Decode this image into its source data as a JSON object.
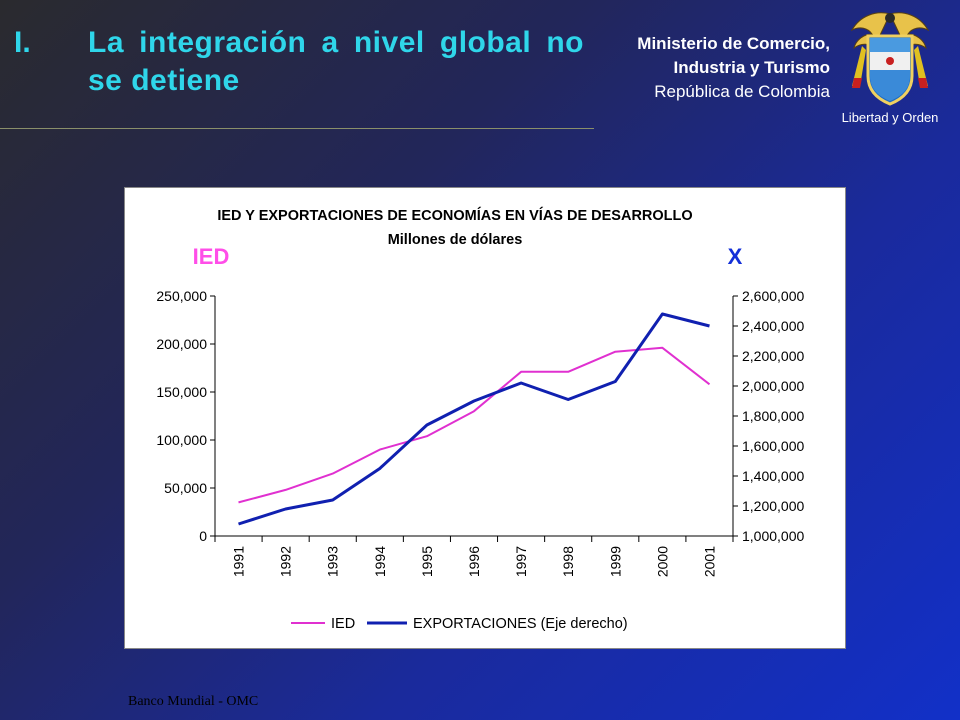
{
  "slide": {
    "number": "I.",
    "title": "La integración a nivel global no se detiene",
    "ministry_line1": "Ministerio de Comercio,",
    "ministry_line2": "Industria y Turismo",
    "ministry_line3": "República de Colombia",
    "crest_motto": "Libertad y Orden",
    "source": "Banco Mundial - OMC"
  },
  "colors": {
    "title": "#2fd6ea",
    "ied_series": "#e030d0",
    "exports_series": "#1020b0",
    "ied_label": "#ff4ee8",
    "x_label": "#1430d8"
  },
  "chart_data": {
    "type": "line",
    "title": "IED Y EXPORTACIONES DE ECONOMÍAS EN VÍAS DE DESARROLLO",
    "subtitle": "Millones de dólares",
    "left_axis_label": "IED",
    "right_axis_label": "X",
    "categories": [
      "1991",
      "1992",
      "1993",
      "1994",
      "1995",
      "1996",
      "1997",
      "1998",
      "1999",
      "2000",
      "2001"
    ],
    "ylim_left": [
      0,
      250000
    ],
    "ylim_right": [
      1000000,
      2600000
    ],
    "yticks_left": [
      "0",
      "50,000",
      "100,000",
      "150,000",
      "200,000",
      "250,000"
    ],
    "yticks_right": [
      "1,000,000",
      "1,200,000",
      "1,400,000",
      "1,600,000",
      "1,800,000",
      "2,000,000",
      "2,200,000",
      "2,400,000",
      "2,600,000"
    ],
    "series": [
      {
        "name": "IED",
        "axis": "left",
        "values": [
          35000,
          48000,
          65000,
          90000,
          104000,
          130000,
          171000,
          171000,
          192000,
          196000,
          158000
        ]
      },
      {
        "name": "EXPORTACIONES (Eje derecho)",
        "axis": "right",
        "values": [
          1080000,
          1180000,
          1240000,
          1450000,
          1740000,
          1900000,
          2020000,
          1910000,
          2030000,
          2480000,
          2400000
        ]
      }
    ],
    "legend_position": "bottom",
    "grid": false
  }
}
